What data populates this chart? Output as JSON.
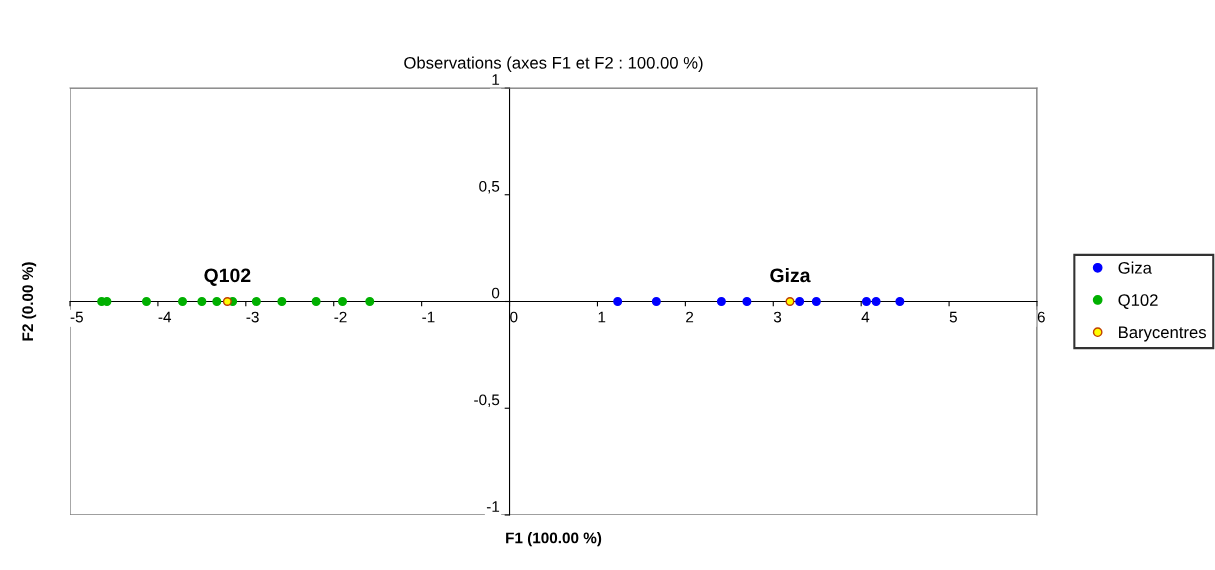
{
  "chart_data": {
    "type": "scatter",
    "title": "Observations (axes F1 et F2 : 100.00 %)",
    "xlabel": "F1 (100.00 %)",
    "ylabel": "F2 (0.00 %)",
    "series": [
      {
        "name": "Giza",
        "color": "#0000ff",
        "x": [
          1.23,
          1.67,
          2.41,
          2.7,
          3.3,
          3.49,
          4.06,
          4.17,
          4.44
        ],
        "values": [
          0,
          0,
          0,
          0,
          0,
          0,
          0,
          0,
          0
        ]
      },
      {
        "name": "Q102",
        "color": "#00b000",
        "x": [
          -4.64,
          -4.58,
          -4.13,
          -3.72,
          -3.5,
          -3.33,
          -3.15,
          -2.88,
          -2.59,
          -2.2,
          -1.9,
          -1.59
        ],
        "values": [
          0,
          0,
          0,
          0,
          0,
          0,
          0,
          0,
          0,
          0,
          0,
          0
        ]
      },
      {
        "name": "Barycentres",
        "color": "#ffff00",
        "x": [
          3.19,
          -3.21
        ],
        "values": [
          0,
          0
        ]
      }
    ],
    "annotations": [
      {
        "text": "Q102",
        "x": -3.21,
        "y": 0
      },
      {
        "text": "Giza",
        "x": 3.19,
        "y": 0
      }
    ],
    "xlim": [
      -5,
      6
    ],
    "xticks": [
      -5,
      -4,
      -3,
      -2,
      -1,
      0,
      1,
      2,
      3,
      4,
      5,
      6
    ],
    "ylim": [
      -1,
      1
    ],
    "yticks": [
      -1,
      {
        "value": -0.5,
        "label": "-0,5"
      },
      0,
      {
        "value": 0.5,
        "label": "0,5"
      },
      1
    ],
    "grid": false,
    "legend": "right",
    "marker": "circle"
  }
}
